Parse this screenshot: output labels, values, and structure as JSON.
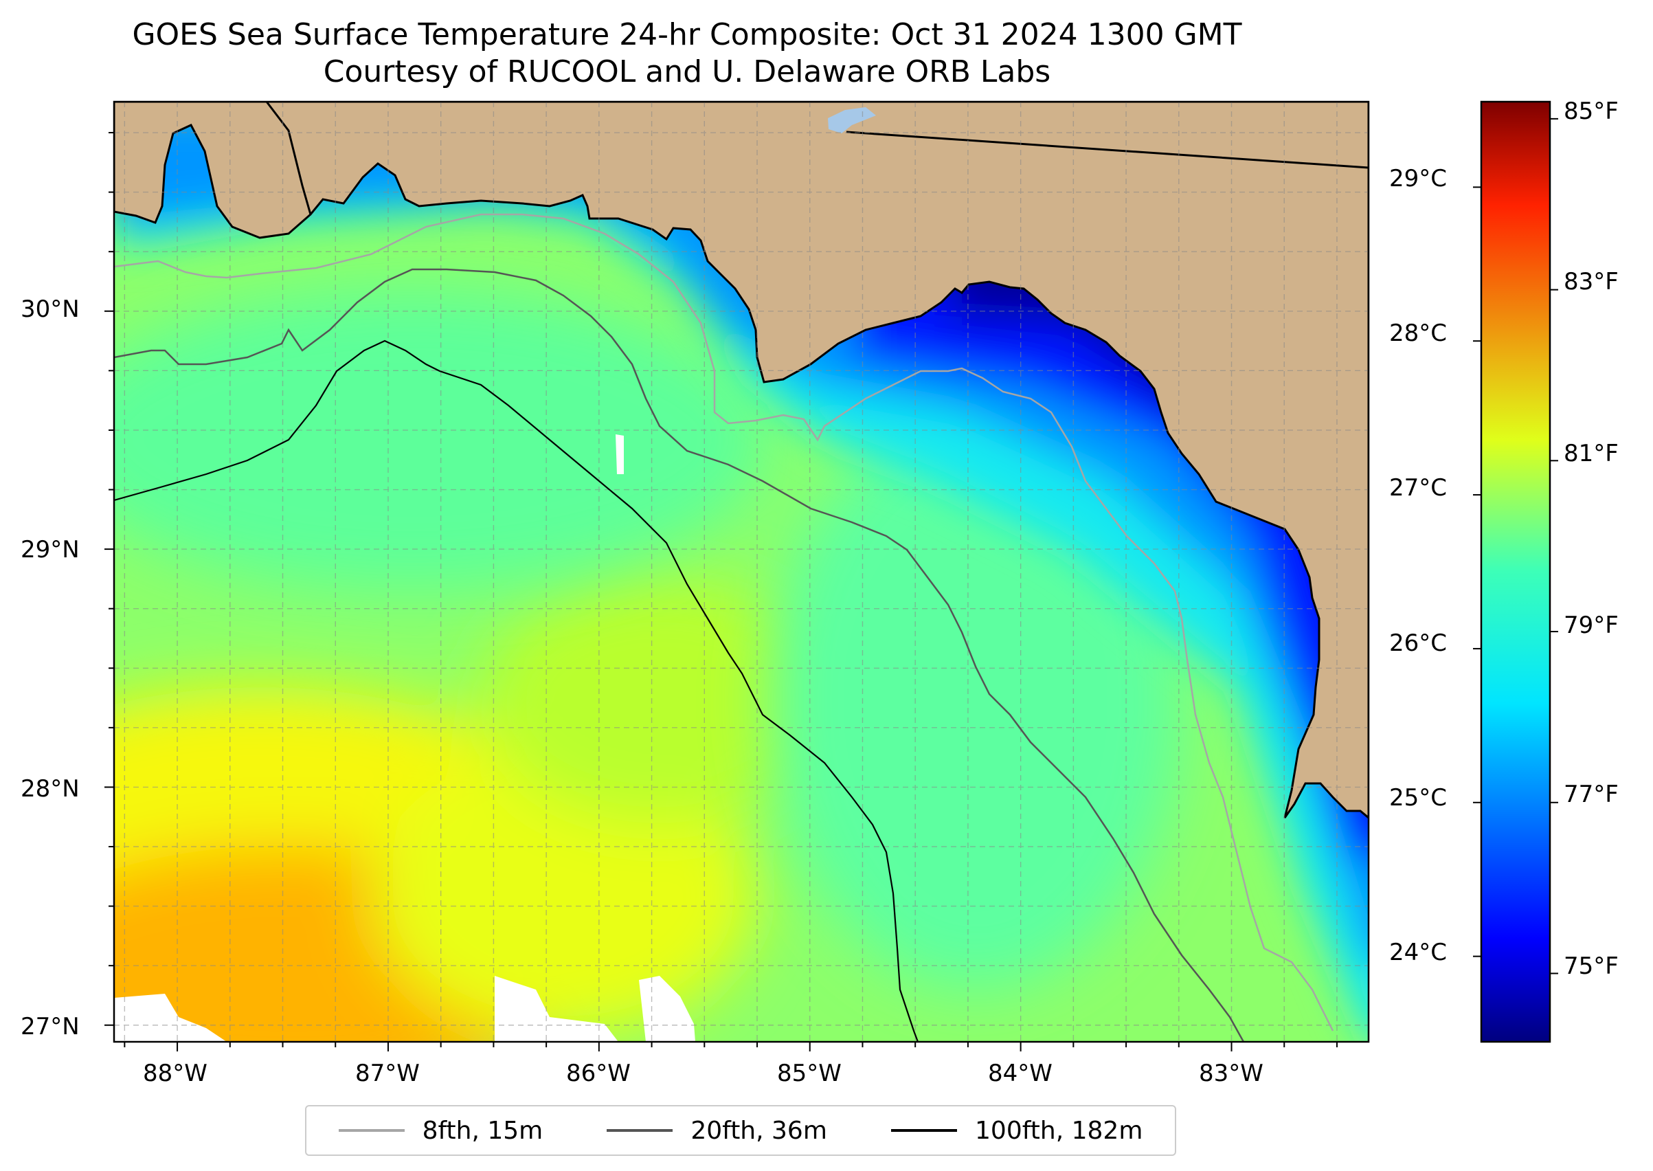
{
  "title": "GOES Sea Surface Temperature 24-hr Composite: Oct 31 2024 1300 GMT",
  "subtitle": "Courtesy of RUCOOL and U. Delaware ORB Labs",
  "map": {
    "lon_range": [
      -88.3,
      -82.35
    ],
    "lat_range": [
      26.93,
      30.88
    ],
    "lon_ticks": [
      "88°W",
      "87°W",
      "86°W",
      "85°W",
      "84°W",
      "83°W"
    ],
    "lat_ticks": [
      "30°N",
      "29°N",
      "28°N",
      "27°N"
    ],
    "land_color": "#d0b28b",
    "grid": true
  },
  "colorbar": {
    "celsius_ticks": [
      "29°C",
      "28°C",
      "27°C",
      "26°C",
      "25°C",
      "24°C"
    ],
    "fahrenheit_ticks": [
      "85°F",
      "83°F",
      "81°F",
      "79°F",
      "77°F",
      "75°F"
    ],
    "colormap": "jet",
    "range_f": [
      74.2,
      85.2
    ]
  },
  "legend": [
    {
      "label": "8fth, 15m",
      "color": "#a6a6a6"
    },
    {
      "label": "20fth, 36m",
      "color": "#555555"
    },
    {
      "label": "100fth, 182m",
      "color": "#000000"
    }
  ]
}
